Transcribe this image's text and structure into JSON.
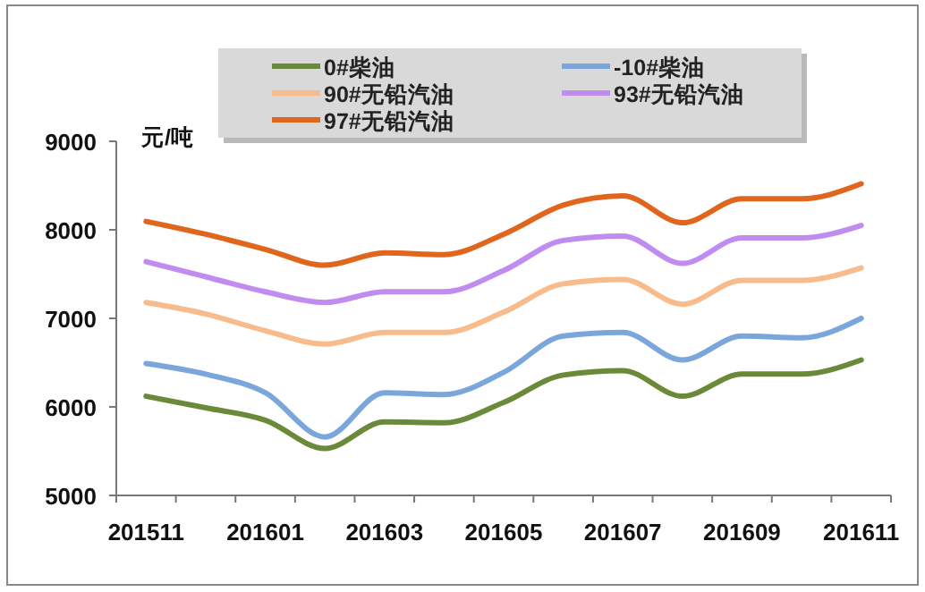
{
  "chart_data": {
    "type": "line",
    "ylabel": "元/吨",
    "categories": [
      "201511",
      null,
      "201601",
      null,
      "201603",
      null,
      "201605",
      null,
      "201607",
      null,
      "201609",
      null,
      "201611"
    ],
    "series": [
      {
        "name": "0#柴油",
        "color": "#6a8a3a",
        "values": [
          6120,
          5990,
          5850,
          5530,
          5830,
          5820,
          6050,
          6360,
          6410,
          6120,
          6370,
          6370,
          6530
        ]
      },
      {
        "name": "-10#柴油",
        "color": "#7aa6dc",
        "values": [
          6490,
          6370,
          6160,
          5660,
          6160,
          6140,
          6390,
          6800,
          6840,
          6530,
          6800,
          6780,
          7000
        ]
      },
      {
        "name": "90#无铅汽油",
        "color": "#f8bc8c",
        "values": [
          7180,
          7050,
          6860,
          6710,
          6840,
          6840,
          7070,
          7390,
          7440,
          7160,
          7430,
          7430,
          7570
        ]
      },
      {
        "name": "93#无铅汽油",
        "color": "#c08cf0",
        "values": [
          7640,
          7470,
          7300,
          7180,
          7300,
          7300,
          7540,
          7880,
          7930,
          7620,
          7910,
          7910,
          8050
        ]
      },
      {
        "name": "97#无铅汽油",
        "color": "#e0661e",
        "values": [
          8095,
          7950,
          7780,
          7600,
          7740,
          7720,
          7950,
          8280,
          8385,
          8080,
          8350,
          8350,
          8520
        ]
      }
    ],
    "ylim": [
      5000,
      9000
    ],
    "yticks": [
      5000,
      6000,
      7000,
      8000,
      9000
    ],
    "grid": false,
    "legend": "top",
    "marker": "none",
    "line_style": "solid"
  }
}
